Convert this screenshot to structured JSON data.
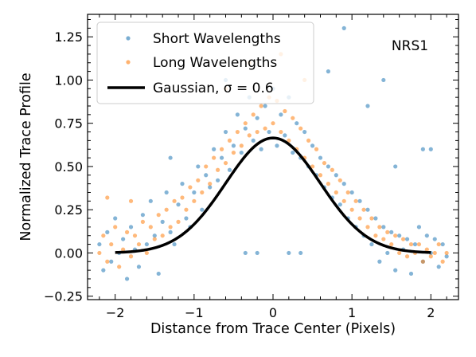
{
  "chart_data": {
    "type": "scatter",
    "title": "",
    "xlabel": "Distance from Trace Center (Pixels)",
    "ylabel": "Normalized Trace Profile",
    "xlim": [
      -2.35,
      2.35
    ],
    "ylim": [
      -0.27,
      1.38
    ],
    "x_ticks": [
      -2,
      -1,
      0,
      1,
      2
    ],
    "x_tick_labels": [
      "−2",
      "−1",
      "0",
      "1",
      "2"
    ],
    "y_ticks": [
      -0.25,
      0.0,
      0.25,
      0.5,
      0.75,
      1.0,
      1.25
    ],
    "y_tick_labels": [
      "−0.25",
      "0.00",
      "0.25",
      "0.50",
      "0.75",
      "1.00",
      "1.25"
    ],
    "grid": false,
    "legend_position": "top-left",
    "annotation": "NRS1",
    "series": [
      {
        "name": "Short Wavelengths",
        "kind": "scatter",
        "color": "#1f77b4",
        "points": [
          [
            -2.2,
            0.05
          ],
          [
            -2.15,
            -0.1
          ],
          [
            -2.1,
            0.12
          ],
          [
            -2.05,
            -0.05
          ],
          [
            -2.0,
            0.2
          ],
          [
            -1.95,
            0.0
          ],
          [
            -1.9,
            0.08
          ],
          [
            -1.85,
            -0.15
          ],
          [
            -1.8,
            0.15
          ],
          [
            -1.75,
            0.02
          ],
          [
            -1.7,
            -0.08
          ],
          [
            -1.65,
            0.22
          ],
          [
            -1.6,
            0.05
          ],
          [
            -1.55,
            0.3
          ],
          [
            -1.5,
            0.1
          ],
          [
            -1.45,
            -0.12
          ],
          [
            -1.4,
            0.18
          ],
          [
            -1.35,
            0.35
          ],
          [
            -1.3,
            0.12
          ],
          [
            -1.25,
            0.05
          ],
          [
            -1.2,
            0.28
          ],
          [
            -1.15,
            0.4
          ],
          [
            -1.1,
            0.2
          ],
          [
            -1.05,
            0.15
          ],
          [
            -1.0,
            0.35
          ],
          [
            -0.95,
            0.5
          ],
          [
            -0.9,
            0.25
          ],
          [
            -0.85,
            0.45
          ],
          [
            -0.8,
            0.38
          ],
          [
            -0.75,
            0.6
          ],
          [
            -0.7,
            0.42
          ],
          [
            -0.65,
            0.55
          ],
          [
            -0.6,
            0.7
          ],
          [
            -0.55,
            0.48
          ],
          [
            -0.5,
            0.62
          ],
          [
            -0.45,
            0.8
          ],
          [
            -0.4,
            0.58
          ],
          [
            -0.35,
            0.72
          ],
          [
            -0.3,
            0.9
          ],
          [
            -0.25,
            0.65
          ],
          [
            -0.2,
            0.78
          ],
          [
            -0.15,
            0.6
          ],
          [
            -0.1,
            0.85
          ],
          [
            -0.05,
            0.7
          ],
          [
            0.0,
            0.95
          ],
          [
            0.05,
            0.62
          ],
          [
            0.1,
            0.8
          ],
          [
            0.15,
            0.68
          ],
          [
            0.2,
            0.9
          ],
          [
            0.25,
            0.58
          ],
          [
            0.3,
            0.75
          ],
          [
            0.35,
            0.55
          ],
          [
            0.4,
            0.7
          ],
          [
            0.45,
            0.5
          ],
          [
            0.5,
            0.62
          ],
          [
            0.55,
            0.45
          ],
          [
            0.6,
            0.55
          ],
          [
            0.65,
            0.38
          ],
          [
            0.7,
            0.5
          ],
          [
            0.75,
            0.32
          ],
          [
            0.8,
            0.45
          ],
          [
            0.85,
            0.28
          ],
          [
            0.9,
            0.4
          ],
          [
            0.95,
            0.2
          ],
          [
            1.0,
            0.35
          ],
          [
            1.05,
            0.15
          ],
          [
            1.1,
            0.3
          ],
          [
            1.15,
            0.1
          ],
          [
            1.2,
            0.25
          ],
          [
            1.25,
            0.05
          ],
          [
            1.3,
            0.2
          ],
          [
            1.35,
            -0.05
          ],
          [
            1.4,
            0.15
          ],
          [
            1.45,
            0.0
          ],
          [
            1.5,
            0.12
          ],
          [
            1.55,
            -0.1
          ],
          [
            1.6,
            0.1
          ],
          [
            1.65,
            0.02
          ],
          [
            1.7,
            0.08
          ],
          [
            1.75,
            -0.12
          ],
          [
            1.8,
            0.05
          ],
          [
            1.85,
            0.15
          ],
          [
            1.9,
            -0.05
          ],
          [
            1.95,
            0.1
          ],
          [
            2.0,
            0.0
          ],
          [
            2.05,
            0.08
          ],
          [
            2.1,
            -0.08
          ],
          [
            2.15,
            0.05
          ],
          [
            2.2,
            -0.02
          ],
          [
            -0.6,
            1.0
          ],
          [
            0.7,
            1.05
          ],
          [
            1.2,
            0.85
          ],
          [
            1.55,
            0.5
          ],
          [
            -1.3,
            0.55
          ],
          [
            2.0,
            0.6
          ],
          [
            0.9,
            1.3
          ],
          [
            1.4,
            1.0
          ],
          [
            1.9,
            0.6
          ],
          [
            -0.35,
            0.0
          ],
          [
            0.35,
            0.0
          ],
          [
            -0.2,
            0.0
          ],
          [
            0.2,
            0.0
          ]
        ]
      },
      {
        "name": "Long Wavelengths",
        "kind": "scatter",
        "color": "#ff7f0e",
        "points": [
          [
            -2.2,
            0.0
          ],
          [
            -2.15,
            0.1
          ],
          [
            -2.1,
            -0.05
          ],
          [
            -2.05,
            0.05
          ],
          [
            -2.0,
            0.15
          ],
          [
            -1.95,
            -0.08
          ],
          [
            -1.9,
            0.02
          ],
          [
            -1.85,
            0.12
          ],
          [
            -1.8,
            -0.02
          ],
          [
            -1.75,
            0.1
          ],
          [
            -1.7,
            0.05
          ],
          [
            -1.65,
            0.18
          ],
          [
            -1.6,
            0.0
          ],
          [
            -1.55,
            0.15
          ],
          [
            -1.5,
            0.08
          ],
          [
            -1.45,
            0.22
          ],
          [
            -1.4,
            0.1
          ],
          [
            -1.35,
            0.25
          ],
          [
            -1.3,
            0.15
          ],
          [
            -1.25,
            0.3
          ],
          [
            -1.2,
            0.18
          ],
          [
            -1.15,
            0.32
          ],
          [
            -1.1,
            0.25
          ],
          [
            -1.05,
            0.38
          ],
          [
            -1.0,
            0.3
          ],
          [
            -0.95,
            0.42
          ],
          [
            -0.9,
            0.35
          ],
          [
            -0.85,
            0.5
          ],
          [
            -0.8,
            0.4
          ],
          [
            -0.75,
            0.55
          ],
          [
            -0.7,
            0.48
          ],
          [
            -0.65,
            0.6
          ],
          [
            -0.6,
            0.52
          ],
          [
            -0.55,
            0.65
          ],
          [
            -0.5,
            0.58
          ],
          [
            -0.45,
            0.7
          ],
          [
            -0.4,
            0.62
          ],
          [
            -0.35,
            0.75
          ],
          [
            -0.3,
            0.68
          ],
          [
            -0.25,
            0.8
          ],
          [
            -0.2,
            0.7
          ],
          [
            -0.15,
            0.85
          ],
          [
            -0.1,
            0.72
          ],
          [
            -0.05,
            0.9
          ],
          [
            0.0,
            0.75
          ],
          [
            0.05,
            0.88
          ],
          [
            0.1,
            0.7
          ],
          [
            0.15,
            0.82
          ],
          [
            0.2,
            0.65
          ],
          [
            0.25,
            0.78
          ],
          [
            0.3,
            0.6
          ],
          [
            0.35,
            0.72
          ],
          [
            0.4,
            0.55
          ],
          [
            0.45,
            0.65
          ],
          [
            0.5,
            0.5
          ],
          [
            0.55,
            0.6
          ],
          [
            0.6,
            0.45
          ],
          [
            0.65,
            0.52
          ],
          [
            0.7,
            0.4
          ],
          [
            0.75,
            0.48
          ],
          [
            0.8,
            0.35
          ],
          [
            0.85,
            0.42
          ],
          [
            0.9,
            0.3
          ],
          [
            0.95,
            0.35
          ],
          [
            1.0,
            0.25
          ],
          [
            1.05,
            0.3
          ],
          [
            1.1,
            0.2
          ],
          [
            1.15,
            0.25
          ],
          [
            1.2,
            0.15
          ],
          [
            1.25,
            0.2
          ],
          [
            1.3,
            0.1
          ],
          [
            1.35,
            0.15
          ],
          [
            1.4,
            0.08
          ],
          [
            1.45,
            0.12
          ],
          [
            1.5,
            0.05
          ],
          [
            1.55,
            0.1
          ],
          [
            1.6,
            0.0
          ],
          [
            1.65,
            0.08
          ],
          [
            1.7,
            -0.02
          ],
          [
            1.75,
            0.05
          ],
          [
            1.8,
            0.0
          ],
          [
            1.85,
            0.05
          ],
          [
            1.9,
            -0.05
          ],
          [
            1.95,
            0.02
          ],
          [
            2.0,
            -0.02
          ],
          [
            2.05,
            0.0
          ],
          [
            2.1,
            0.05
          ],
          [
            2.15,
            -0.05
          ],
          [
            2.2,
            0.0
          ],
          [
            -0.3,
            1.1
          ],
          [
            0.1,
            1.15
          ],
          [
            0.4,
            1.0
          ],
          [
            -0.6,
            0.95
          ],
          [
            -2.1,
            0.32
          ],
          [
            -1.8,
            0.3
          ]
        ]
      },
      {
        "name": "Gaussian, σ = 0.6",
        "kind": "line",
        "color": "#000000",
        "amplitude": 0.665,
        "mu": 0,
        "sigma": 0.6,
        "x_range": [
          -2,
          2
        ]
      }
    ]
  }
}
